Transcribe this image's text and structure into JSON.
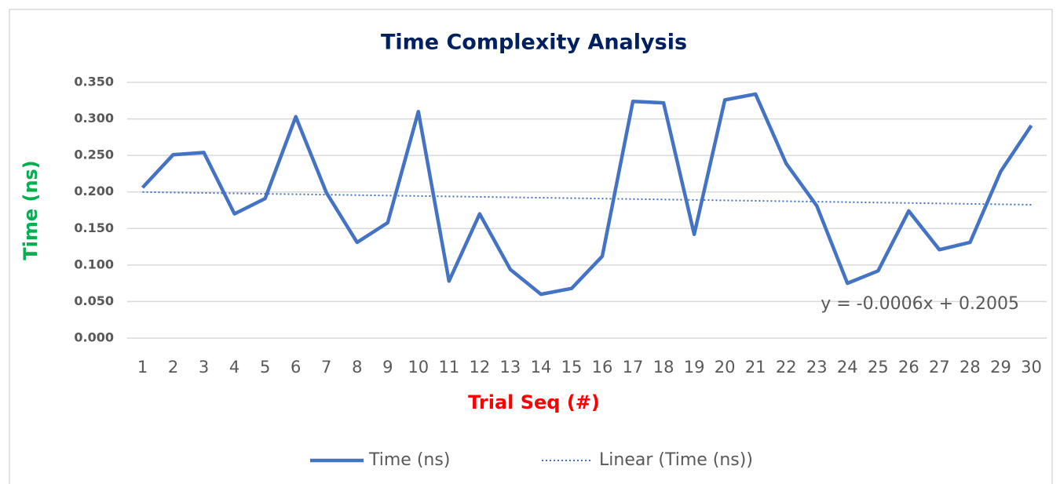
{
  "chart_data": {
    "type": "line",
    "title": "Time Complexity Analysis",
    "x_label": "Trial Seq (#)",
    "y_label": "Time (ns)",
    "categories": [
      "1",
      "2",
      "3",
      "4",
      "5",
      "6",
      "7",
      "8",
      "9",
      "10",
      "11",
      "12",
      "13",
      "14",
      "15",
      "16",
      "17",
      "18",
      "19",
      "20",
      "21",
      "22",
      "23",
      "24",
      "25",
      "26",
      "27",
      "28",
      "29",
      "30"
    ],
    "series": [
      {
        "name": "Time (ns)",
        "color": "#4472c4",
        "values": [
          0.206,
          0.251,
          0.254,
          0.17,
          0.191,
          0.303,
          0.199,
          0.131,
          0.158,
          0.31,
          0.078,
          0.17,
          0.094,
          0.06,
          0.068,
          0.112,
          0.324,
          0.322,
          0.142,
          0.326,
          0.334,
          0.239,
          0.181,
          0.075,
          0.092,
          0.174,
          0.121,
          0.131,
          0.228,
          0.291
        ]
      }
    ],
    "trendline": {
      "name": "Linear (Time (ns))",
      "color": "#4472c4",
      "slope": -0.0006,
      "intercept": 0.2005,
      "label": "y = -0.0006x + 0.2005"
    },
    "ylim": [
      0,
      0.35
    ],
    "yticks": [
      {
        "value": 0,
        "label": "0.000"
      },
      {
        "value": 0.05,
        "label": "0.050"
      },
      {
        "value": 0.1,
        "label": "0.100"
      },
      {
        "value": 0.15,
        "label": "0.150"
      },
      {
        "value": 0.2,
        "label": "0.200"
      },
      {
        "value": 0.25,
        "label": "0.250"
      },
      {
        "value": 0.3,
        "label": "0.300"
      },
      {
        "value": 0.35,
        "label": "0.350"
      }
    ],
    "grid": true,
    "legend": "bottom"
  }
}
